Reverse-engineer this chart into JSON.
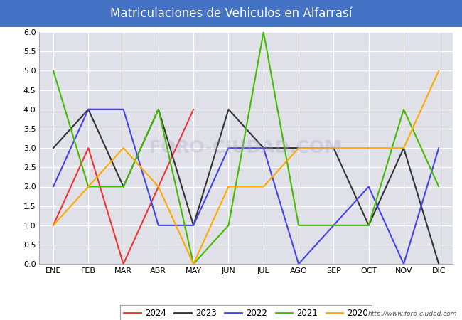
{
  "title": "Matriculaciones de Vehiculos en Alfarrasí",
  "months": [
    "ENE",
    "FEB",
    "MAR",
    "ABR",
    "MAY",
    "JUN",
    "JUL",
    "AGO",
    "SEP",
    "OCT",
    "NOV",
    "DIC"
  ],
  "series": {
    "2024": [
      1,
      3,
      0,
      2,
      4,
      null,
      null,
      null,
      null,
      null,
      null,
      null
    ],
    "2023": [
      3,
      4,
      2,
      4,
      1,
      4,
      3,
      3,
      3,
      1,
      3,
      0
    ],
    "2022": [
      2,
      4,
      4,
      1,
      1,
      3,
      3,
      0,
      1,
      2,
      0,
      3
    ],
    "2021": [
      5,
      2,
      2,
      4,
      0,
      1,
      6,
      1,
      1,
      1,
      4,
      2
    ],
    "2020": [
      1,
      2,
      3,
      2,
      0,
      2,
      2,
      3,
      3,
      3,
      3,
      5
    ]
  },
  "colors": {
    "2024": "#EE3333",
    "2023": "#333333",
    "2022": "#4444EE",
    "2021": "#44BB00",
    "2020": "#FFAA00"
  },
  "ylim": [
    0,
    6.0
  ],
  "yticks": [
    0.0,
    0.5,
    1.0,
    1.5,
    2.0,
    2.5,
    3.0,
    3.5,
    4.0,
    4.5,
    5.0,
    5.5,
    6.0
  ],
  "fig_bg_color": "#FFFFFF",
  "plot_bg_color": "#E0E0E8",
  "title_bg_color": "#4472C4",
  "title_text_color": "#FFFFFF",
  "watermark": "FORO-CIUDAD.COM",
  "url": "http://www.foro-ciudad.com",
  "legend_years": [
    "2024",
    "2023",
    "2022",
    "2021",
    "2020"
  ],
  "title_fontsize": 12,
  "tick_fontsize": 8,
  "linewidth": 1.5
}
